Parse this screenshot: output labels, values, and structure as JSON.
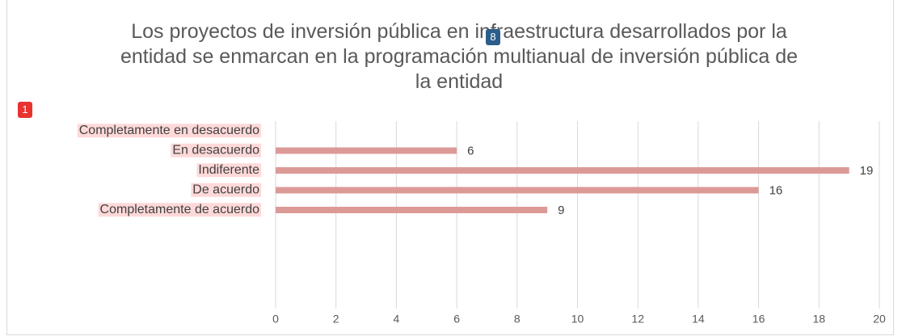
{
  "chart_data": {
    "type": "barh",
    "title": "Los proyectos de inversión pública en infraestructura desarrollados por la entidad se enmarcan en la programación multianual de inversión pública de la entidad",
    "categories": [
      "Completamente en desacuerdo",
      "En desacuerdo",
      "Indiferente",
      "De acuerdo",
      "Completamente de acuerdo"
    ],
    "values": [
      0,
      6,
      19,
      16,
      9
    ],
    "value_labels": [
      null,
      "6",
      "19",
      "16",
      "9"
    ],
    "color": "#dc9a97",
    "xlim": [
      0,
      20
    ],
    "xticks": [
      0,
      2,
      4,
      6,
      8,
      10,
      12,
      14,
      16,
      18,
      20
    ],
    "grid": true,
    "annotations": [
      "1",
      "8"
    ]
  }
}
